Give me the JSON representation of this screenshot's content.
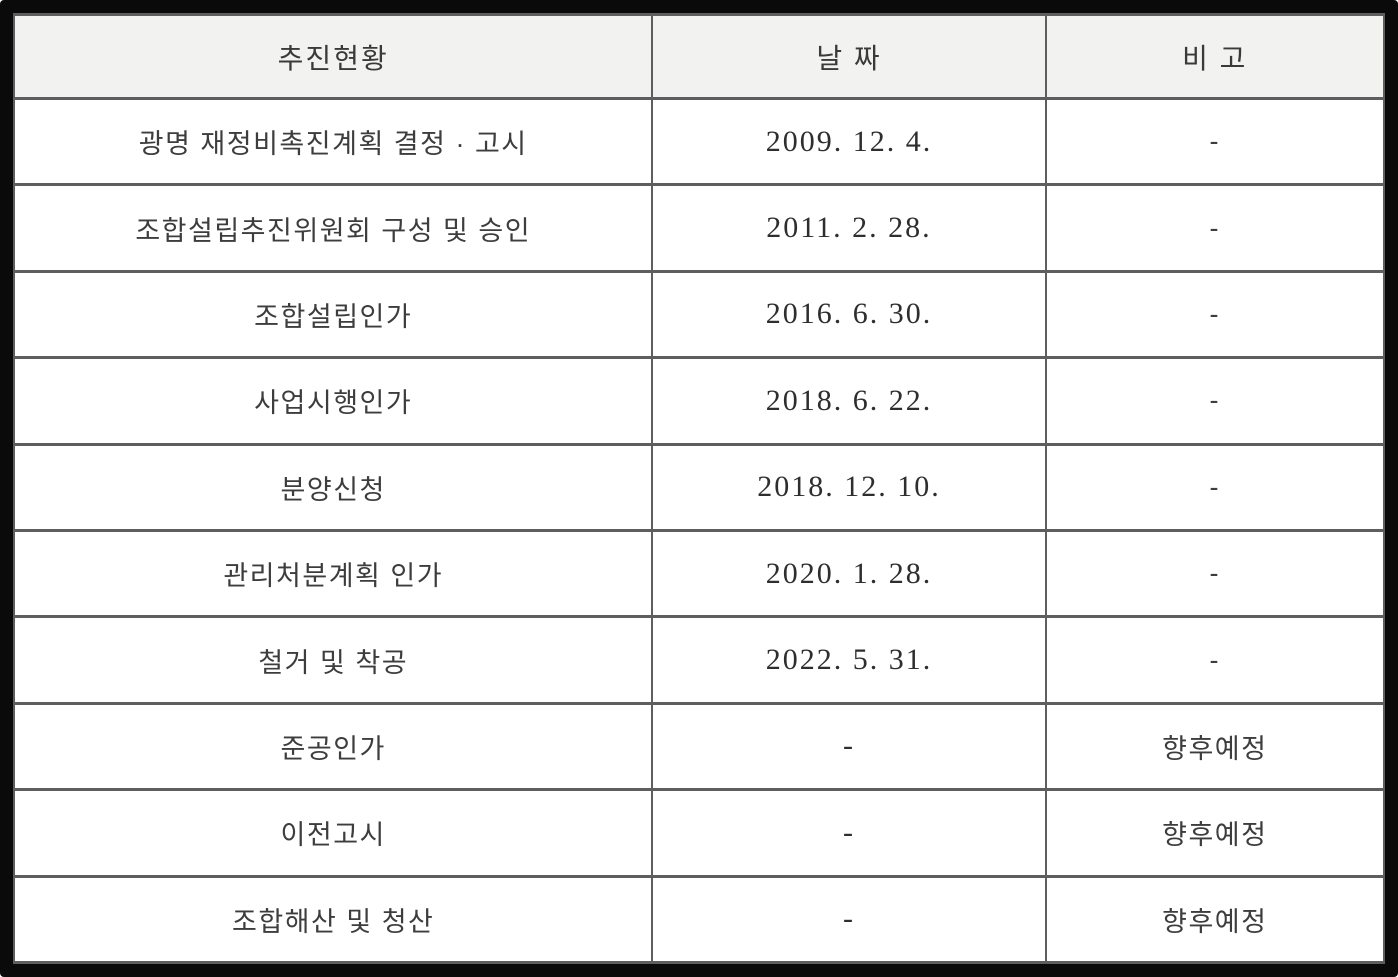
{
  "table": {
    "columns": [
      {
        "label": "추진현황"
      },
      {
        "label": "날 짜"
      },
      {
        "label": "비 고"
      }
    ],
    "rows": [
      {
        "status": "광명 재정비촉진계획 결정 · 고시",
        "date": "2009. 12. 4.",
        "note": "-"
      },
      {
        "status": "조합설립추진위원회 구성 및 승인",
        "date": "2011. 2. 28.",
        "note": "-"
      },
      {
        "status": "조합설립인가",
        "date": "2016. 6. 30.",
        "note": "-"
      },
      {
        "status": "사업시행인가",
        "date": "2018. 6. 22.",
        "note": "-"
      },
      {
        "status": "분양신청",
        "date": "2018. 12. 10.",
        "note": "-"
      },
      {
        "status": "관리처분계획 인가",
        "date": "2020. 1. 28.",
        "note": "-"
      },
      {
        "status": "철거 및 착공",
        "date": "2022. 5. 31.",
        "note": "-"
      },
      {
        "status": "준공인가",
        "date": "-",
        "note": "향후예정"
      },
      {
        "status": "이전고시",
        "date": "-",
        "note": "향후예정"
      },
      {
        "status": "조합해산 및 청산",
        "date": "-",
        "note": "향후예정"
      }
    ]
  },
  "colors": {
    "frame": "#0a0a0a",
    "grid_line": "#5e5e5e",
    "header_background": "#f2f2f1",
    "text": "#3d3d3d",
    "date_text": "#2e2e2e"
  }
}
